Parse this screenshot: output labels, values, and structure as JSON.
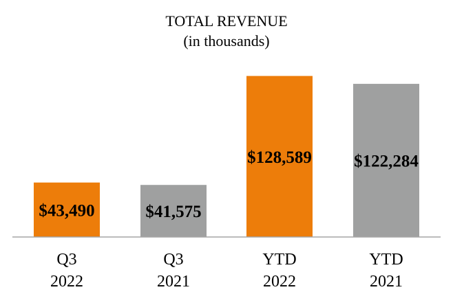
{
  "chart_data": {
    "type": "bar",
    "title": "TOTAL REVENUE",
    "subtitle": "(in thousands)",
    "categories": [
      [
        "Q3",
        "2022"
      ],
      [
        "Q3",
        "2021"
      ],
      [
        "YTD",
        "2022"
      ],
      [
        "YTD",
        "2021"
      ]
    ],
    "values": [
      43490,
      41575,
      128589,
      122284
    ],
    "value_labels": [
      "$43,490",
      "$41,575",
      "$128,589",
      "$122,284"
    ],
    "colors": [
      "#ED7D0A",
      "#9FA0A0",
      "#ED7D0A",
      "#9FA0A0"
    ],
    "ylim": [
      0,
      130000
    ],
    "grid": false,
    "legend": "none",
    "xlabel": "",
    "ylabel": ""
  }
}
